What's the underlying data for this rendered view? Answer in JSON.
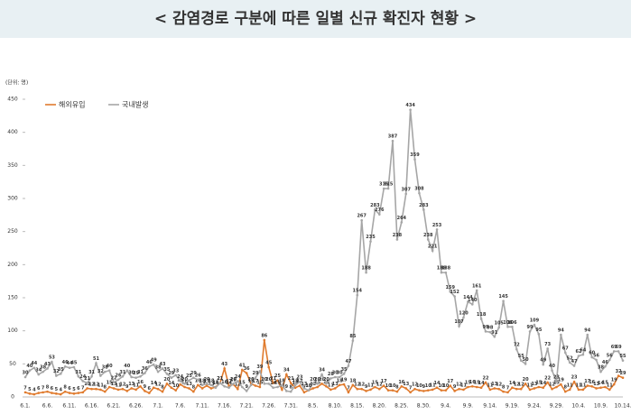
{
  "chart_data": {
    "type": "line",
    "title": "< 감염경로 구분에 따른 일별 신규 확진자 현황 >",
    "unit_label": "(단위: 명)",
    "categories": [
      "6.1.",
      null,
      null,
      null,
      null,
      "6.6.",
      null,
      null,
      null,
      null,
      "6.11.",
      null,
      null,
      null,
      null,
      "6.16.",
      null,
      null,
      null,
      null,
      "6.21.",
      null,
      null,
      null,
      null,
      "6.26.",
      null,
      null,
      null,
      null,
      "7.1.",
      null,
      null,
      null,
      null,
      "7.6.",
      null,
      null,
      null,
      null,
      "7.11.",
      null,
      null,
      null,
      null,
      "7.16.",
      null,
      null,
      null,
      null,
      "7.21.",
      null,
      null,
      null,
      null,
      "7.26.",
      null,
      null,
      null,
      null,
      "7.31.",
      null,
      null,
      null,
      null,
      "8.5.",
      null,
      null,
      null,
      null,
      "8.10.",
      null,
      null,
      null,
      null,
      "8.15.",
      null,
      null,
      null,
      null,
      "8.20.",
      null,
      null,
      null,
      null,
      "8.25.",
      null,
      null,
      null,
      null,
      "8.30.",
      null,
      null,
      null,
      null,
      "9.4.",
      null,
      null,
      null,
      null,
      "9.9.",
      null,
      null,
      null,
      null,
      "9.14.",
      null,
      null,
      null,
      null,
      "9.19.",
      null,
      null,
      null,
      null,
      "9.24.",
      null,
      null,
      null,
      null,
      "9.29.",
      null,
      null,
      null,
      null,
      "10.4.",
      null,
      null,
      null,
      null,
      "10.9.",
      null,
      null,
      null,
      null,
      "10.14."
    ],
    "series": [
      {
        "name": "해외유입",
        "color": "#e07b2e",
        "values": [
          7,
          5,
          4,
          6,
          7,
          8,
          6,
          5,
          4,
          8,
          6,
          5,
          6,
          7,
          13,
          12,
          12,
          11,
          8,
          15,
          13,
          11,
          12,
          9,
          13,
          11,
          16,
          9,
          6,
          14,
          12,
          8,
          20,
          14,
          10,
          19,
          15,
          13,
          8,
          18,
          13,
          17,
          13,
          15,
          21,
          43,
          17,
          19,
          12,
          41,
          36,
          20,
          17,
          15,
          86,
          45,
          21,
          25,
          11,
          34,
          21,
          14,
          17,
          7,
          10,
          13,
          15,
          20,
          16,
          11,
          13,
          18,
          19,
          7,
          18,
          12,
          12,
          9,
          11,
          15,
          12,
          17,
          10,
          10,
          8,
          16,
          13,
          7,
          12,
          10,
          9,
          10,
          11,
          14,
          10,
          10,
          17,
          9,
          12,
          11,
          15,
          16,
          15,
          14,
          22,
          11,
          13,
          12,
          8,
          7,
          14,
          12,
          12,
          20,
          11,
          13,
          15,
          14,
          22,
          12,
          15,
          19,
          8,
          11,
          23,
          11,
          11,
          17,
          16,
          13,
          14,
          15,
          11,
          19,
          32,
          29
        ]
      },
      {
        "name": "국내발생",
        "color": "#a6a6a6",
        "values": [
          30,
          40,
          44,
          34,
          38,
          43,
          53,
          32,
          35,
          46,
          44,
          45,
          31,
          24,
          21,
          31,
          51,
          32,
          38,
          40,
          22,
          26,
          31,
          40,
          30,
          29,
          31,
          36,
          46,
          49,
          38,
          43,
          35,
          29,
          33,
          24,
          20,
          25,
          29,
          26,
          18,
          20,
          18,
          14,
          21,
          16,
          14,
          20,
          24,
          15,
          9,
          18,
          29,
          39,
          20,
          20,
          14,
          15,
          18,
          9,
          8,
          18,
          23,
          13,
          10,
          20,
          20,
          34,
          20,
          28,
          30,
          30,
          35,
          47,
          85,
          154,
          267,
          188,
          235,
          283,
          276,
          315,
          315,
          387,
          238,
          264,
          307,
          434,
          359,
          308,
          283,
          238,
          221,
          253,
          188,
          188,
          159,
          152,
          107,
          120,
          144,
          140,
          161,
          118,
          99,
          98,
          91,
          105,
          145,
          106,
          106,
          72,
          55,
          50,
          99,
          109,
          95,
          49,
          73,
          40,
          23,
          94,
          67,
          52,
          47,
          62,
          64,
          94,
          60,
          56,
          38,
          46,
          56,
          69,
          69,
          55
        ]
      }
    ],
    "ylim": [
      0,
      450
    ],
    "yticks": [
      0,
      50,
      100,
      150,
      200,
      250,
      300,
      350,
      400,
      450
    ],
    "legend": "top-left"
  }
}
